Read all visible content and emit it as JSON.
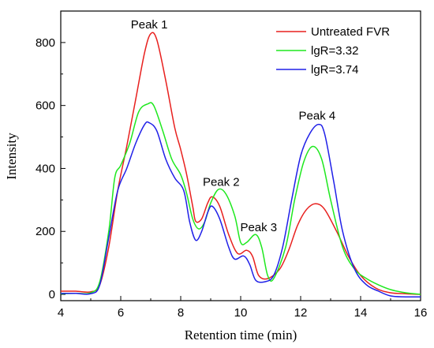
{
  "chart_data": {
    "type": "line",
    "xlabel": "Retention time (min)",
    "ylabel": "Intensity",
    "xlim": [
      4,
      16
    ],
    "ylim": [
      -20,
      900
    ],
    "xticks": [
      4,
      6,
      8,
      10,
      12,
      14,
      16
    ],
    "yticks": [
      0,
      200,
      400,
      600,
      800
    ],
    "grid": false,
    "legend": "top-right",
    "annotations": [
      {
        "text": "Peak 1",
        "x": 6.95,
        "y": 845
      },
      {
        "text": "Peak 2",
        "x": 9.35,
        "y": 345
      },
      {
        "text": "Peak 3",
        "x": 10.6,
        "y": 200
      },
      {
        "text": "Peak 4",
        "x": 12.55,
        "y": 555
      }
    ],
    "series": [
      {
        "name": "Untreated FVR",
        "color": "#e8201e",
        "points": [
          [
            4.0,
            10
          ],
          [
            4.5,
            10
          ],
          [
            5.0,
            8
          ],
          [
            5.3,
            30
          ],
          [
            5.6,
            150
          ],
          [
            5.9,
            330
          ],
          [
            6.2,
            470
          ],
          [
            6.5,
            620
          ],
          [
            6.8,
            770
          ],
          [
            7.0,
            828
          ],
          [
            7.2,
            810
          ],
          [
            7.5,
            680
          ],
          [
            7.8,
            530
          ],
          [
            8.0,
            460
          ],
          [
            8.2,
            380
          ],
          [
            8.4,
            280
          ],
          [
            8.5,
            232
          ],
          [
            8.7,
            240
          ],
          [
            8.9,
            290
          ],
          [
            9.05,
            310
          ],
          [
            9.3,
            280
          ],
          [
            9.6,
            190
          ],
          [
            9.9,
            130
          ],
          [
            10.2,
            140
          ],
          [
            10.4,
            120
          ],
          [
            10.6,
            60
          ],
          [
            10.9,
            50
          ],
          [
            11.3,
            80
          ],
          [
            11.6,
            140
          ],
          [
            11.9,
            220
          ],
          [
            12.2,
            270
          ],
          [
            12.5,
            288
          ],
          [
            12.8,
            270
          ],
          [
            13.2,
            200
          ],
          [
            13.6,
            120
          ],
          [
            14.0,
            60
          ],
          [
            14.5,
            20
          ],
          [
            15.0,
            5
          ],
          [
            15.5,
            2
          ],
          [
            16.0,
            0
          ]
        ]
      },
      {
        "name": "lgR=3.32",
        "color": "#1ee81e",
        "points": [
          [
            4.0,
            2
          ],
          [
            4.5,
            3
          ],
          [
            5.0,
            5
          ],
          [
            5.3,
            40
          ],
          [
            5.6,
            200
          ],
          [
            5.8,
            370
          ],
          [
            6.0,
            410
          ],
          [
            6.3,
            480
          ],
          [
            6.6,
            580
          ],
          [
            6.9,
            605
          ],
          [
            7.1,
            600
          ],
          [
            7.4,
            520
          ],
          [
            7.7,
            430
          ],
          [
            8.0,
            380
          ],
          [
            8.2,
            320
          ],
          [
            8.4,
            240
          ],
          [
            8.6,
            208
          ],
          [
            8.8,
            230
          ],
          [
            9.0,
            290
          ],
          [
            9.25,
            333
          ],
          [
            9.5,
            320
          ],
          [
            9.8,
            250
          ],
          [
            10.0,
            165
          ],
          [
            10.2,
            165
          ],
          [
            10.5,
            190
          ],
          [
            10.7,
            150
          ],
          [
            10.9,
            60
          ],
          [
            11.1,
            50
          ],
          [
            11.5,
            150
          ],
          [
            11.8,
            300
          ],
          [
            12.1,
            420
          ],
          [
            12.4,
            470
          ],
          [
            12.7,
            430
          ],
          [
            13.0,
            300
          ],
          [
            13.4,
            150
          ],
          [
            13.8,
            80
          ],
          [
            14.2,
            50
          ],
          [
            14.6,
            30
          ],
          [
            15.0,
            15
          ],
          [
            15.5,
            5
          ],
          [
            16.0,
            0
          ]
        ]
      },
      {
        "name": "lgR=3.74",
        "color": "#2020e8",
        "points": [
          [
            4.0,
            3
          ],
          [
            4.5,
            3
          ],
          [
            5.0,
            2
          ],
          [
            5.3,
            30
          ],
          [
            5.6,
            180
          ],
          [
            5.9,
            330
          ],
          [
            6.2,
            400
          ],
          [
            6.5,
            480
          ],
          [
            6.8,
            540
          ],
          [
            6.95,
            545
          ],
          [
            7.2,
            520
          ],
          [
            7.5,
            430
          ],
          [
            7.8,
            370
          ],
          [
            8.1,
            330
          ],
          [
            8.3,
            230
          ],
          [
            8.5,
            172
          ],
          [
            8.7,
            200
          ],
          [
            8.9,
            260
          ],
          [
            9.05,
            280
          ],
          [
            9.3,
            240
          ],
          [
            9.6,
            150
          ],
          [
            9.8,
            112
          ],
          [
            10.1,
            122
          ],
          [
            10.3,
            95
          ],
          [
            10.5,
            45
          ],
          [
            10.8,
            40
          ],
          [
            11.1,
            60
          ],
          [
            11.4,
            150
          ],
          [
            11.7,
            300
          ],
          [
            12.0,
            440
          ],
          [
            12.3,
            510
          ],
          [
            12.6,
            540
          ],
          [
            12.8,
            510
          ],
          [
            13.1,
            360
          ],
          [
            13.4,
            200
          ],
          [
            13.8,
            80
          ],
          [
            14.2,
            30
          ],
          [
            14.6,
            10
          ],
          [
            15.0,
            -5
          ],
          [
            15.5,
            -8
          ],
          [
            16.0,
            -8
          ]
        ]
      }
    ]
  }
}
